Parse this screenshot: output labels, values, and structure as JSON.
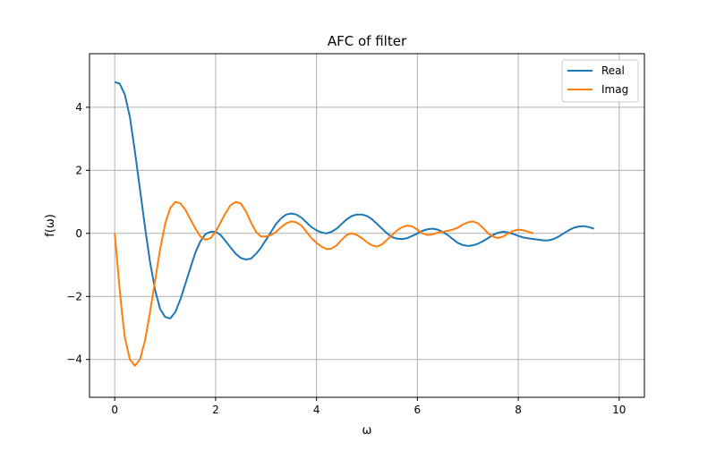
{
  "chart_data": {
    "type": "line",
    "title": "AFC of filter",
    "xlabel": "ω",
    "ylabel": "f(ω)",
    "xlim": [
      -0.5,
      10.5
    ],
    "ylim": [
      -5.2,
      5.7
    ],
    "xticks": [
      0,
      2,
      4,
      6,
      8,
      10
    ],
    "yticks": [
      -4,
      -2,
      0,
      2,
      4
    ],
    "grid": true,
    "legend_position": "top-right",
    "series": [
      {
        "name": "Real",
        "color": "#1f77b4",
        "points": [
          [
            0.0,
            4.8
          ],
          [
            0.1,
            4.75
          ],
          [
            0.2,
            4.4
          ],
          [
            0.3,
            3.7
          ],
          [
            0.4,
            2.6
          ],
          [
            0.5,
            1.4
          ],
          [
            0.6,
            0.2
          ],
          [
            0.7,
            -0.9
          ],
          [
            0.8,
            -1.8
          ],
          [
            0.9,
            -2.4
          ],
          [
            1.0,
            -2.65
          ],
          [
            1.1,
            -2.7
          ],
          [
            1.2,
            -2.5
          ],
          [
            1.3,
            -2.1
          ],
          [
            1.4,
            -1.6
          ],
          [
            1.5,
            -1.1
          ],
          [
            1.6,
            -0.6
          ],
          [
            1.7,
            -0.25
          ],
          [
            1.8,
            -0.02
          ],
          [
            1.9,
            0.05
          ],
          [
            2.0,
            0.05
          ],
          [
            2.1,
            -0.05
          ],
          [
            2.2,
            -0.25
          ],
          [
            2.3,
            -0.45
          ],
          [
            2.4,
            -0.65
          ],
          [
            2.5,
            -0.78
          ],
          [
            2.6,
            -0.83
          ],
          [
            2.7,
            -0.8
          ],
          [
            2.8,
            -0.65
          ],
          [
            2.9,
            -0.45
          ],
          [
            3.0,
            -0.2
          ],
          [
            3.1,
            0.05
          ],
          [
            3.2,
            0.3
          ],
          [
            3.3,
            0.48
          ],
          [
            3.4,
            0.6
          ],
          [
            3.5,
            0.63
          ],
          [
            3.6,
            0.6
          ],
          [
            3.7,
            0.5
          ],
          [
            3.8,
            0.35
          ],
          [
            3.9,
            0.2
          ],
          [
            4.0,
            0.1
          ],
          [
            4.1,
            0.03
          ],
          [
            4.2,
            0.0
          ],
          [
            4.3,
            0.05
          ],
          [
            4.4,
            0.15
          ],
          [
            4.5,
            0.3
          ],
          [
            4.6,
            0.45
          ],
          [
            4.7,
            0.55
          ],
          [
            4.8,
            0.6
          ],
          [
            4.9,
            0.6
          ],
          [
            5.0,
            0.55
          ],
          [
            5.1,
            0.45
          ],
          [
            5.2,
            0.3
          ],
          [
            5.3,
            0.15
          ],
          [
            5.4,
            0.0
          ],
          [
            5.5,
            -0.12
          ],
          [
            5.6,
            -0.17
          ],
          [
            5.7,
            -0.18
          ],
          [
            5.8,
            -0.15
          ],
          [
            5.9,
            -0.08
          ],
          [
            6.0,
            0.0
          ],
          [
            6.1,
            0.08
          ],
          [
            6.2,
            0.13
          ],
          [
            6.3,
            0.15
          ],
          [
            6.4,
            0.12
          ],
          [
            6.5,
            0.05
          ],
          [
            6.6,
            -0.05
          ],
          [
            6.7,
            -0.18
          ],
          [
            6.8,
            -0.3
          ],
          [
            6.9,
            -0.37
          ],
          [
            7.0,
            -0.4
          ],
          [
            7.1,
            -0.38
          ],
          [
            7.2,
            -0.33
          ],
          [
            7.3,
            -0.25
          ],
          [
            7.4,
            -0.15
          ],
          [
            7.5,
            -0.05
          ],
          [
            7.6,
            0.02
          ],
          [
            7.7,
            0.05
          ],
          [
            7.8,
            0.03
          ],
          [
            7.9,
            -0.02
          ],
          [
            8.0,
            -0.08
          ],
          [
            8.1,
            -0.13
          ],
          [
            8.2,
            -0.16
          ],
          [
            8.3,
            -0.18
          ],
          [
            8.4,
            -0.2
          ],
          [
            8.5,
            -0.22
          ],
          [
            8.6,
            -0.22
          ],
          [
            8.7,
            -0.18
          ],
          [
            8.8,
            -0.1
          ],
          [
            8.9,
            0.0
          ],
          [
            9.0,
            0.1
          ],
          [
            9.1,
            0.18
          ],
          [
            9.2,
            0.22
          ],
          [
            9.3,
            0.23
          ],
          [
            9.4,
            0.2
          ],
          [
            9.5,
            0.15
          ]
        ]
      },
      {
        "name": "Imag",
        "color": "#ff7f0e",
        "points": [
          [
            0.0,
            0.0
          ],
          [
            0.05,
            -0.9
          ],
          [
            0.1,
            -1.8
          ],
          [
            0.15,
            -2.6
          ],
          [
            0.2,
            -3.3
          ],
          [
            0.3,
            -4.0
          ],
          [
            0.4,
            -4.2
          ],
          [
            0.5,
            -4.0
          ],
          [
            0.6,
            -3.4
          ],
          [
            0.7,
            -2.5
          ],
          [
            0.8,
            -1.5
          ],
          [
            0.9,
            -0.5
          ],
          [
            1.0,
            0.3
          ],
          [
            1.1,
            0.8
          ],
          [
            1.2,
            1.0
          ],
          [
            1.3,
            0.95
          ],
          [
            1.4,
            0.75
          ],
          [
            1.5,
            0.45
          ],
          [
            1.6,
            0.15
          ],
          [
            1.7,
            -0.1
          ],
          [
            1.8,
            -0.2
          ],
          [
            1.9,
            -0.15
          ],
          [
            2.0,
            0.05
          ],
          [
            2.1,
            0.35
          ],
          [
            2.2,
            0.65
          ],
          [
            2.3,
            0.9
          ],
          [
            2.4,
            1.0
          ],
          [
            2.5,
            0.95
          ],
          [
            2.6,
            0.7
          ],
          [
            2.7,
            0.35
          ],
          [
            2.8,
            0.05
          ],
          [
            2.9,
            -0.1
          ],
          [
            3.0,
            -0.1
          ],
          [
            3.1,
            -0.05
          ],
          [
            3.2,
            0.05
          ],
          [
            3.3,
            0.2
          ],
          [
            3.4,
            0.32
          ],
          [
            3.5,
            0.38
          ],
          [
            3.6,
            0.35
          ],
          [
            3.7,
            0.25
          ],
          [
            3.8,
            0.05
          ],
          [
            3.9,
            -0.15
          ],
          [
            4.0,
            -0.3
          ],
          [
            4.1,
            -0.42
          ],
          [
            4.2,
            -0.5
          ],
          [
            4.3,
            -0.48
          ],
          [
            4.4,
            -0.38
          ],
          [
            4.5,
            -0.2
          ],
          [
            4.6,
            -0.05
          ],
          [
            4.7,
            0.0
          ],
          [
            4.8,
            -0.05
          ],
          [
            4.9,
            -0.15
          ],
          [
            5.0,
            -0.28
          ],
          [
            5.1,
            -0.38
          ],
          [
            5.2,
            -0.42
          ],
          [
            5.3,
            -0.35
          ],
          [
            5.4,
            -0.2
          ],
          [
            5.5,
            -0.05
          ],
          [
            5.6,
            0.1
          ],
          [
            5.7,
            0.2
          ],
          [
            5.8,
            0.25
          ],
          [
            5.9,
            0.22
          ],
          [
            6.0,
            0.12
          ],
          [
            6.1,
            0.0
          ],
          [
            6.2,
            -0.05
          ],
          [
            6.3,
            -0.03
          ],
          [
            6.4,
            0.02
          ],
          [
            6.5,
            0.05
          ],
          [
            6.6,
            0.08
          ],
          [
            6.7,
            0.12
          ],
          [
            6.8,
            0.18
          ],
          [
            6.9,
            0.28
          ],
          [
            7.0,
            0.35
          ],
          [
            7.1,
            0.38
          ],
          [
            7.2,
            0.32
          ],
          [
            7.3,
            0.18
          ],
          [
            7.4,
            0.0
          ],
          [
            7.5,
            -0.1
          ],
          [
            7.6,
            -0.15
          ],
          [
            7.7,
            -0.1
          ],
          [
            7.8,
            0.0
          ],
          [
            7.9,
            0.08
          ],
          [
            8.0,
            0.12
          ],
          [
            8.1,
            0.1
          ],
          [
            8.2,
            0.05
          ],
          [
            8.3,
            0.0
          ]
        ]
      }
    ]
  }
}
